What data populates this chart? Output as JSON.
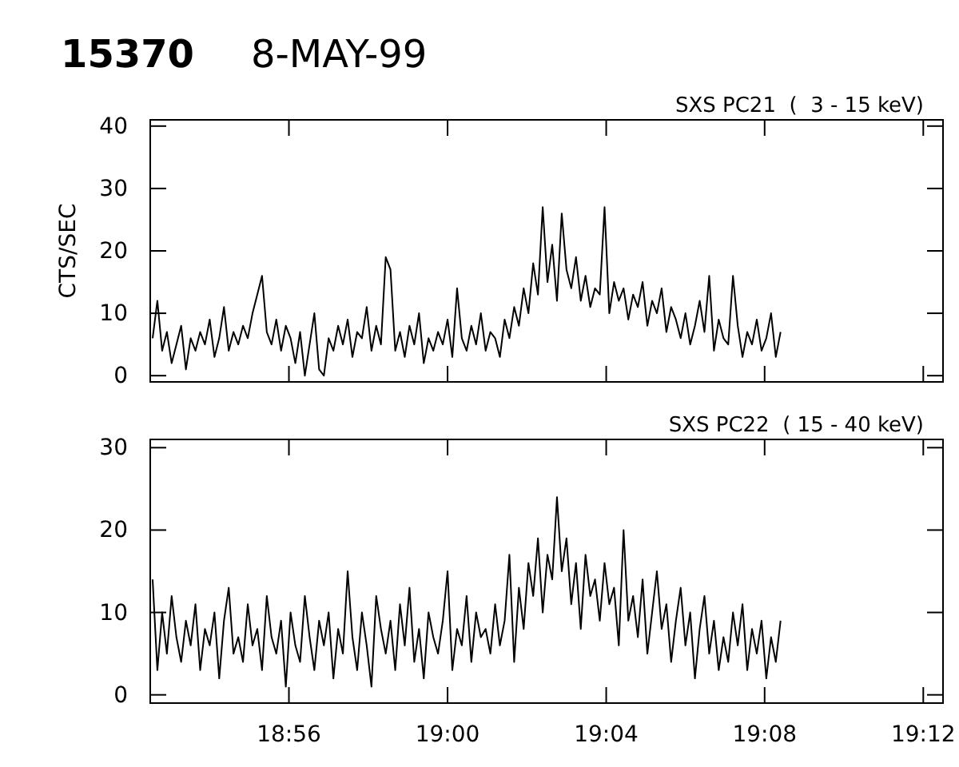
{
  "chart_data": [
    {
      "type": "line",
      "title": "SXS PC21  (  3 - 15 keV)",
      "ylabel": "CTS/SEC",
      "annotations": [
        "15370",
        "8-MAY-99"
      ],
      "x": [
        18.876,
        18.878,
        18.88,
        18.882,
        18.884,
        18.886,
        18.888,
        18.89,
        18.892,
        18.894,
        18.896,
        18.898,
        18.9,
        18.902,
        18.904,
        18.906,
        18.908,
        18.91,
        18.912,
        18.914,
        18.916,
        18.918,
        18.92,
        18.922,
        18.924,
        18.926,
        18.928,
        18.93,
        18.932,
        18.934,
        18.936,
        18.938,
        18.94,
        18.942,
        18.944,
        18.946,
        18.948,
        18.95,
        18.952,
        18.954,
        18.956,
        18.958,
        18.96,
        18.962,
        18.964,
        18.966,
        18.968,
        18.97,
        18.972,
        18.974,
        18.976,
        18.978,
        18.98,
        18.982,
        18.984,
        18.986,
        18.988,
        18.99,
        18.992,
        18.994,
        18.996,
        18.998,
        19.0,
        19.002,
        19.004,
        19.006,
        19.008,
        19.01,
        19.012,
        19.014,
        19.016,
        19.018,
        19.02,
        19.022,
        19.024,
        19.026,
        19.028,
        19.03,
        19.032,
        19.034,
        19.036,
        19.038,
        19.04,
        19.042,
        19.044,
        19.046,
        19.048,
        19.05,
        19.052,
        19.054,
        19.056,
        19.058,
        19.06,
        19.062,
        19.064,
        19.066,
        19.068,
        19.07,
        19.072,
        19.074,
        19.076,
        19.078,
        19.08,
        19.082,
        19.084,
        19.086,
        19.088,
        19.09,
        19.092,
        19.094,
        19.096,
        19.098,
        19.1,
        19.102,
        19.104,
        19.106,
        19.108,
        19.11,
        19.112,
        19.114,
        19.116,
        19.118,
        19.12,
        19.122,
        19.124,
        19.126,
        19.128,
        19.13,
        19.132,
        19.134,
        19.136,
        19.138,
        19.14
      ],
      "xlim": [
        18.875,
        19.2083
      ],
      "ylim": [
        -1,
        41
      ],
      "yticks": [
        0,
        10,
        20,
        30,
        40
      ],
      "xticks": [
        {
          "value": 18.9333,
          "label": null
        },
        {
          "value": 19.0,
          "label": null
        },
        {
          "value": 19.0667,
          "label": null
        },
        {
          "value": 19.1333,
          "label": null
        },
        {
          "value": 19.2,
          "label": null
        }
      ],
      "tick_labels": "y",
      "grid": false,
      "series": [
        {
          "color": "#000000",
          "values": [
            6,
            12,
            4,
            7,
            2,
            5,
            8,
            1,
            6,
            4,
            7,
            5,
            9,
            3,
            6,
            11,
            4,
            7,
            5,
            8,
            6,
            10,
            13,
            16,
            7,
            5,
            9,
            4,
            8,
            6,
            2,
            7,
            0,
            5,
            10,
            1,
            0,
            6,
            4,
            8,
            5,
            9,
            3,
            7,
            6,
            11,
            4,
            8,
            5,
            19,
            17,
            4,
            7,
            3,
            8,
            5,
            10,
            2,
            6,
            4,
            7,
            5,
            9,
            3,
            14,
            6,
            4,
            8,
            5,
            10,
            4,
            7,
            6,
            3,
            9,
            6,
            11,
            8,
            14,
            10,
            18,
            13,
            27,
            15,
            21,
            12,
            26,
            17,
            14,
            19,
            12,
            16,
            11,
            14,
            13,
            27,
            10,
            15,
            12,
            14,
            9,
            13,
            11,
            15,
            8,
            12,
            10,
            14,
            7,
            11,
            9,
            6,
            10,
            5,
            8,
            12,
            7,
            16,
            4,
            9,
            6,
            5,
            16,
            8,
            3,
            7,
            5,
            9,
            4,
            6,
            10,
            3,
            7
          ]
        }
      ]
    },
    {
      "type": "line",
      "title": "SXS PC22  ( 15 - 40 keV)",
      "x": [
        18.876,
        18.878,
        18.88,
        18.882,
        18.884,
        18.886,
        18.888,
        18.89,
        18.892,
        18.894,
        18.896,
        18.898,
        18.9,
        18.902,
        18.904,
        18.906,
        18.908,
        18.91,
        18.912,
        18.914,
        18.916,
        18.918,
        18.92,
        18.922,
        18.924,
        18.926,
        18.928,
        18.93,
        18.932,
        18.934,
        18.936,
        18.938,
        18.94,
        18.942,
        18.944,
        18.946,
        18.948,
        18.95,
        18.952,
        18.954,
        18.956,
        18.958,
        18.96,
        18.962,
        18.964,
        18.966,
        18.968,
        18.97,
        18.972,
        18.974,
        18.976,
        18.978,
        18.98,
        18.982,
        18.984,
        18.986,
        18.988,
        18.99,
        18.992,
        18.994,
        18.996,
        18.998,
        19.0,
        19.002,
        19.004,
        19.006,
        19.008,
        19.01,
        19.012,
        19.014,
        19.016,
        19.018,
        19.02,
        19.022,
        19.024,
        19.026,
        19.028,
        19.03,
        19.032,
        19.034,
        19.036,
        19.038,
        19.04,
        19.042,
        19.044,
        19.046,
        19.048,
        19.05,
        19.052,
        19.054,
        19.056,
        19.058,
        19.06,
        19.062,
        19.064,
        19.066,
        19.068,
        19.07,
        19.072,
        19.074,
        19.076,
        19.078,
        19.08,
        19.082,
        19.084,
        19.086,
        19.088,
        19.09,
        19.092,
        19.094,
        19.096,
        19.098,
        19.1,
        19.102,
        19.104,
        19.106,
        19.108,
        19.11,
        19.112,
        19.114,
        19.116,
        19.118,
        19.12,
        19.122,
        19.124,
        19.126,
        19.128,
        19.13,
        19.132,
        19.134,
        19.136,
        19.138,
        19.14
      ],
      "xlim": [
        18.875,
        19.2083
      ],
      "ylim": [
        -1,
        31
      ],
      "yticks": [
        0,
        10,
        20,
        30
      ],
      "xticks": [
        {
          "value": 18.9333,
          "label": "18:56"
        },
        {
          "value": 19.0,
          "label": "19:00"
        },
        {
          "value": 19.0667,
          "label": "19:04"
        },
        {
          "value": 19.1333,
          "label": "19:08"
        },
        {
          "value": 19.2,
          "label": "19:12"
        }
      ],
      "grid": false,
      "series": [
        {
          "color": "#000000",
          "values": [
            14,
            3,
            10,
            5,
            12,
            7,
            4,
            9,
            6,
            11,
            3,
            8,
            6,
            10,
            2,
            9,
            13,
            5,
            7,
            4,
            11,
            6,
            8,
            3,
            12,
            7,
            5,
            9,
            1,
            10,
            6,
            4,
            12,
            7,
            3,
            9,
            6,
            10,
            2,
            8,
            5,
            15,
            7,
            3,
            10,
            6,
            1,
            12,
            8,
            5,
            9,
            3,
            11,
            6,
            13,
            4,
            8,
            2,
            10,
            7,
            5,
            9,
            15,
            3,
            8,
            6,
            12,
            4,
            10,
            7,
            8,
            5,
            11,
            6,
            9,
            17,
            4,
            13,
            8,
            16,
            12,
            19,
            10,
            17,
            14,
            24,
            15,
            19,
            11,
            16,
            8,
            17,
            12,
            14,
            9,
            16,
            11,
            13,
            6,
            20,
            9,
            12,
            7,
            14,
            5,
            10,
            15,
            8,
            11,
            4,
            9,
            13,
            6,
            10,
            2,
            8,
            12,
            5,
            9,
            3,
            7,
            4,
            10,
            6,
            11,
            3,
            8,
            5,
            9,
            2,
            7,
            4,
            9
          ]
        }
      ]
    }
  ]
}
